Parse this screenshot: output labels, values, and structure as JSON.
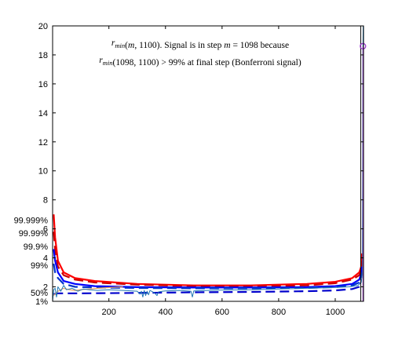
{
  "chart_data": {
    "type": "line",
    "title": "",
    "xlabel": "",
    "ylabel": "",
    "xlim": [
      1,
      1100
    ],
    "ylim": [
      1,
      20
    ],
    "xticks": [
      200,
      400,
      600,
      800,
      1000
    ],
    "yticks": [
      2,
      4,
      6,
      8,
      10,
      12,
      14,
      16,
      18,
      20
    ],
    "grid": false,
    "annotation": {
      "line1": "r_min(m, 1100). Signal is in step m = 1098 because",
      "line2": "r_min(1098, 1100) > 99% at final step (Bonferroni signal)"
    },
    "band_labels": [
      {
        "text": "99.999%",
        "y": 6.6
      },
      {
        "text": "99.99%",
        "y": 5.7
      },
      {
        "text": "99.9%",
        "y": 4.8
      },
      {
        "text": "99%",
        "y": 3.5
      },
      {
        "text": "50%",
        "y": 1.6
      },
      {
        "text": "1%",
        "y": 1.0
      }
    ],
    "vertical_line_x": 1090,
    "signal_point": {
      "x": 1098,
      "y": 18.6
    },
    "colors": {
      "observed": "#1f77b4",
      "observed_secondary": "#e8a060",
      "band_99_999": "#ff0000",
      "band_99_99": "#cc0000",
      "band_99_9": "#0000ff",
      "band_99": "#0033cc",
      "band_50": "#0000cc",
      "signal_line": "#9933cc",
      "vertical_line": "#000000"
    },
    "series": [
      {
        "key": "band_99_999",
        "style": "solid",
        "width": 2.2,
        "points": [
          [
            5,
            7.0
          ],
          [
            10,
            5.4
          ],
          [
            20,
            3.8
          ],
          [
            40,
            3.0
          ],
          [
            80,
            2.6
          ],
          [
            150,
            2.4
          ],
          [
            300,
            2.2
          ],
          [
            500,
            2.1
          ],
          [
            700,
            2.1
          ],
          [
            900,
            2.2
          ],
          [
            1000,
            2.35
          ],
          [
            1060,
            2.6
          ],
          [
            1085,
            3.0
          ],
          [
            1092,
            3.4
          ],
          [
            1095,
            4.3
          ]
        ]
      },
      {
        "key": "band_99_99",
        "style": "dashed",
        "width": 2.2,
        "points": [
          [
            5,
            5.8
          ],
          [
            10,
            4.6
          ],
          [
            20,
            3.4
          ],
          [
            40,
            2.8
          ],
          [
            80,
            2.5
          ],
          [
            150,
            2.3
          ],
          [
            300,
            2.15
          ],
          [
            500,
            2.05
          ],
          [
            700,
            2.05
          ],
          [
            900,
            2.1
          ],
          [
            1000,
            2.25
          ],
          [
            1060,
            2.5
          ],
          [
            1085,
            2.8
          ],
          [
            1092,
            3.2
          ],
          [
            1095,
            3.8
          ]
        ]
      },
      {
        "key": "band_99_9",
        "style": "solid",
        "width": 2.2,
        "points": [
          [
            5,
            4.6
          ],
          [
            10,
            3.8
          ],
          [
            20,
            3.0
          ],
          [
            40,
            2.4
          ],
          [
            80,
            2.2
          ],
          [
            150,
            2.05
          ],
          [
            300,
            1.98
          ],
          [
            500,
            1.95
          ],
          [
            700,
            1.95
          ],
          [
            900,
            1.98
          ],
          [
            1000,
            2.05
          ],
          [
            1060,
            2.2
          ],
          [
            1085,
            2.5
          ],
          [
            1092,
            2.9
          ],
          [
            1095,
            3.4
          ]
        ]
      },
      {
        "key": "band_99",
        "style": "dashed",
        "width": 2.2,
        "points": [
          [
            5,
            3.6
          ],
          [
            10,
            3.0
          ],
          [
            20,
            2.6
          ],
          [
            40,
            2.2
          ],
          [
            80,
            2.0
          ],
          [
            150,
            1.95
          ],
          [
            300,
            1.92
          ],
          [
            500,
            1.9
          ],
          [
            700,
            1.9
          ],
          [
            900,
            1.92
          ],
          [
            1000,
            1.98
          ],
          [
            1060,
            2.1
          ],
          [
            1085,
            2.3
          ],
          [
            1092,
            2.6
          ],
          [
            1095,
            3.0
          ]
        ]
      },
      {
        "key": "band_50",
        "style": "dashed",
        "width": 2.2,
        "points": [
          [
            5,
            1.5
          ],
          [
            20,
            1.55
          ],
          [
            60,
            1.55
          ],
          [
            100,
            1.55
          ],
          [
            300,
            1.58
          ],
          [
            500,
            1.62
          ],
          [
            700,
            1.65
          ],
          [
            900,
            1.7
          ],
          [
            1000,
            1.75
          ],
          [
            1060,
            1.85
          ],
          [
            1085,
            2.0
          ],
          [
            1095,
            2.2
          ]
        ]
      },
      {
        "key": "observed_secondary",
        "style": "solid",
        "width": 1.2,
        "points": [
          [
            5,
            1.4
          ],
          [
            20,
            1.7
          ],
          [
            40,
            1.9
          ],
          [
            60,
            1.8
          ],
          [
            80,
            1.75
          ],
          [
            100,
            1.8
          ],
          [
            130,
            1.85
          ],
          [
            160,
            1.9
          ],
          [
            200,
            1.95
          ],
          [
            250,
            2.0
          ]
        ]
      },
      {
        "key": "observed",
        "style": "solid",
        "width": 1.0,
        "points": [
          [
            1,
            1.0
          ],
          [
            5,
            1.8
          ],
          [
            10,
            1.9
          ],
          [
            15,
            1.3
          ],
          [
            20,
            2.0
          ],
          [
            30,
            1.7
          ],
          [
            40,
            2.1
          ],
          [
            50,
            1.8
          ],
          [
            70,
            1.9
          ],
          [
            90,
            1.7
          ],
          [
            110,
            1.85
          ],
          [
            130,
            1.8
          ],
          [
            160,
            1.75
          ],
          [
            200,
            1.8
          ],
          [
            250,
            1.75
          ],
          [
            300,
            1.7
          ],
          [
            310,
            1.5
          ],
          [
            315,
            1.7
          ],
          [
            320,
            1.3
          ],
          [
            325,
            1.75
          ],
          [
            330,
            1.4
          ],
          [
            335,
            1.7
          ],
          [
            340,
            1.45
          ],
          [
            345,
            1.75
          ],
          [
            360,
            1.6
          ],
          [
            370,
            1.4
          ],
          [
            375,
            1.65
          ],
          [
            390,
            1.7
          ],
          [
            400,
            1.72
          ],
          [
            450,
            1.75
          ],
          [
            490,
            1.7
          ],
          [
            495,
            1.3
          ],
          [
            500,
            1.72
          ],
          [
            550,
            1.75
          ],
          [
            600,
            1.78
          ],
          [
            700,
            1.8
          ],
          [
            800,
            1.85
          ],
          [
            900,
            1.9
          ],
          [
            1000,
            1.95
          ],
          [
            1050,
            2.0
          ],
          [
            1080,
            2.1
          ],
          [
            1092,
            2.3
          ],
          [
            1096,
            3.0
          ],
          [
            1097,
            9.0
          ],
          [
            1098,
            18.6
          ],
          [
            1099,
            20
          ]
        ]
      }
    ]
  }
}
